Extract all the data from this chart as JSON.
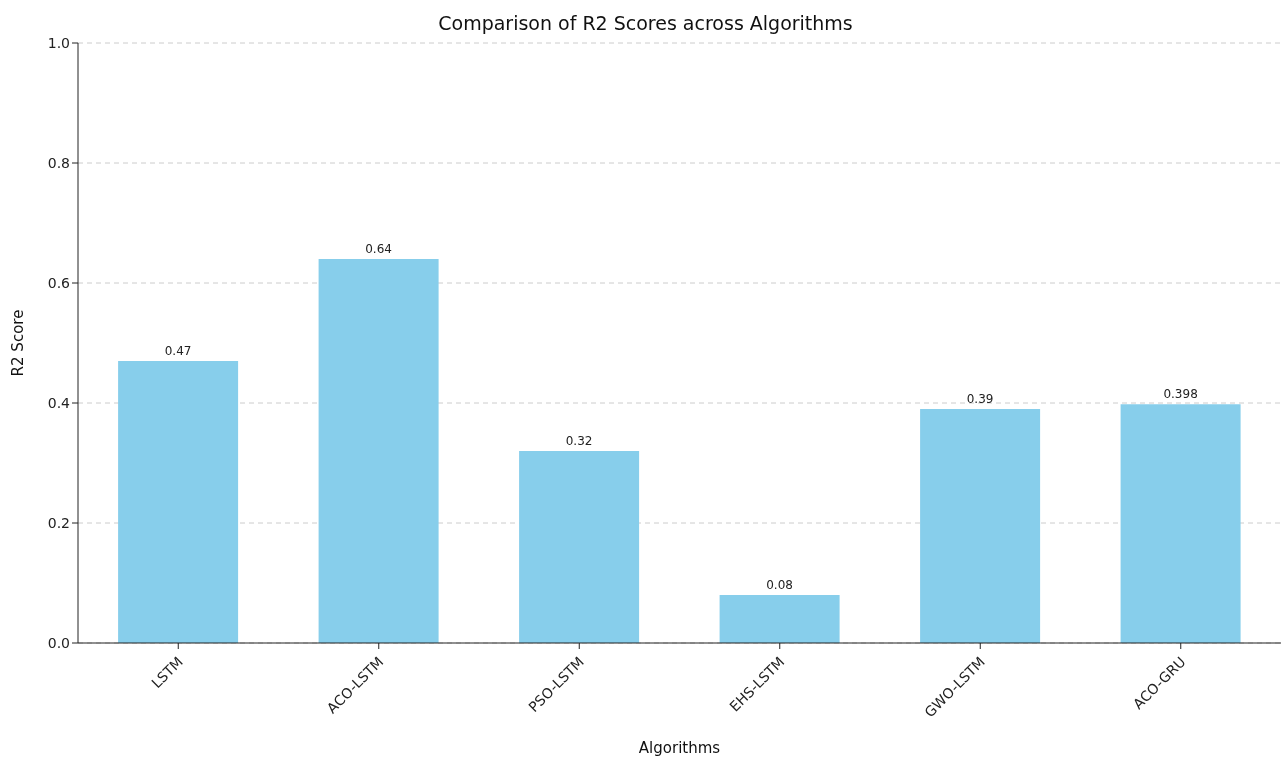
{
  "chart_data": {
    "type": "bar",
    "title": "Comparison of R2 Scores across Algorithms",
    "xlabel": "Algorithms",
    "ylabel": "R2 Score",
    "categories": [
      "LSTM",
      "ACO-LSTM",
      "PSO-LSTM",
      "EHS-LSTM",
      "GWO-LSTM",
      "ACO-GRU"
    ],
    "values": [
      0.47,
      0.64,
      0.32,
      0.08,
      0.39,
      0.398
    ],
    "color": "#87ceeb",
    "ylim": [
      0,
      1
    ],
    "yticks": [
      {
        "value": 0,
        "label": "0.0"
      },
      {
        "value": 0.2,
        "label": "0.2"
      },
      {
        "value": 0.4,
        "label": "0.4"
      },
      {
        "value": 0.6,
        "label": "0.6"
      },
      {
        "value": 0.8,
        "label": "0.8"
      },
      {
        "value": 1,
        "label": "1.0"
      }
    ],
    "grid": "y",
    "data_labels": true
  }
}
